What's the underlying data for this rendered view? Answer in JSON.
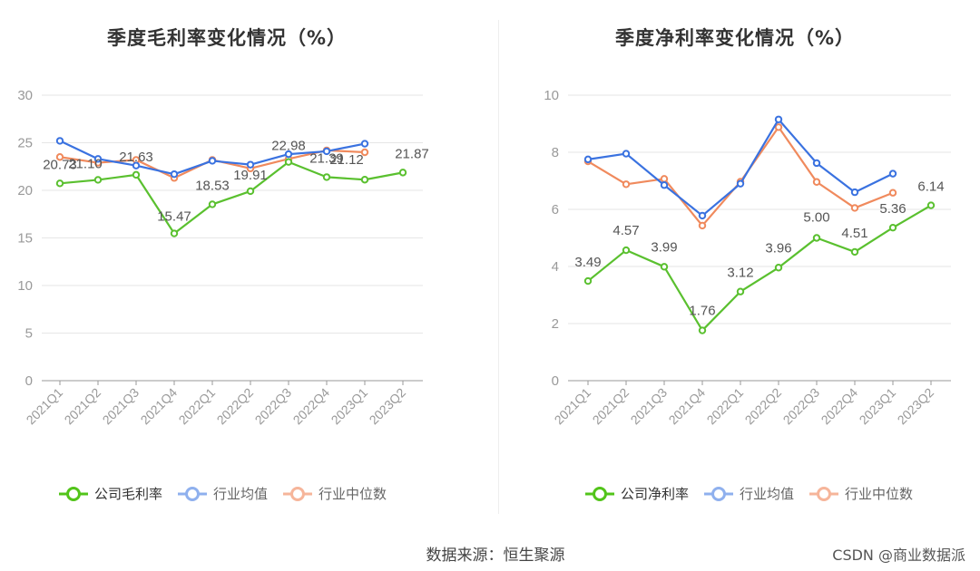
{
  "charts": [
    {
      "title": "季度毛利率变化情况（%）",
      "legend": [
        {
          "label": "公司毛利率",
          "color": "#52c41a"
        },
        {
          "label": "行业均值",
          "color": "#6e93e8"
        },
        {
          "label": "行业中位数",
          "color": "#f4a07e"
        }
      ]
    },
    {
      "title": "季度净利率变化情况（%）",
      "legend": [
        {
          "label": "公司净利率",
          "color": "#52c41a"
        },
        {
          "label": "行业均值",
          "color": "#6e93e8"
        },
        {
          "label": "行业中位数",
          "color": "#f4a07e"
        }
      ]
    }
  ],
  "chart_data": [
    {
      "type": "line",
      "title": "季度毛利率变化情况（%）",
      "categories": [
        "2021Q1",
        "2021Q2",
        "2021Q3",
        "2021Q4",
        "2022Q1",
        "2022Q2",
        "2022Q3",
        "2022Q4",
        "2023Q1",
        "2023Q2"
      ],
      "ylim": [
        0,
        30
      ],
      "yticks": [
        0,
        5,
        10,
        15,
        20,
        25,
        30
      ],
      "grid": true,
      "legend_position": "bottom",
      "series": [
        {
          "name": "公司毛利率",
          "color": "#52c41a",
          "line_color": "#5ac02f",
          "labels": true,
          "values": [
            20.73,
            21.1,
            21.63,
            15.47,
            18.53,
            19.91,
            22.98,
            21.39,
            21.12,
            21.87
          ]
        },
        {
          "name": "行业均值",
          "color": "#3a72e0",
          "line_color": "#3a72e0",
          "labels": false,
          "values": [
            25.2,
            23.3,
            22.6,
            21.7,
            23.1,
            22.7,
            23.8,
            24.1,
            24.9,
            null
          ]
        },
        {
          "name": "行业中位数",
          "color": "#f08a5d",
          "line_color": "#f08a5d",
          "labels": false,
          "values": [
            23.5,
            22.9,
            23.2,
            21.3,
            23.2,
            22.3,
            23.3,
            24.2,
            24.0,
            null
          ]
        }
      ]
    },
    {
      "type": "line",
      "title": "季度净利率变化情况（%）",
      "categories": [
        "2021Q1",
        "2021Q2",
        "2021Q3",
        "2021Q4",
        "2022Q1",
        "2022Q2",
        "2022Q3",
        "2022Q4",
        "2023Q1",
        "2023Q2"
      ],
      "ylim": [
        0,
        10
      ],
      "yticks": [
        0,
        2,
        4,
        6,
        8,
        10
      ],
      "grid": true,
      "legend_position": "bottom",
      "series": [
        {
          "name": "公司净利率",
          "color": "#52c41a",
          "line_color": "#5ac02f",
          "labels": true,
          "values": [
            3.49,
            4.57,
            3.99,
            1.76,
            3.12,
            3.96,
            5.0,
            4.51,
            5.36,
            6.14
          ]
        },
        {
          "name": "行业均值",
          "color": "#3a72e0",
          "line_color": "#3a72e0",
          "labels": false,
          "values": [
            7.75,
            7.95,
            6.85,
            5.78,
            6.9,
            9.15,
            7.62,
            6.6,
            7.25,
            null
          ]
        },
        {
          "name": "行业中位数",
          "color": "#f08a5d",
          "line_color": "#f08a5d",
          "labels": false,
          "values": [
            7.68,
            6.88,
            7.07,
            5.43,
            6.97,
            8.88,
            6.96,
            6.05,
            6.58,
            null
          ]
        }
      ]
    }
  ],
  "source_text": "数据来源：恒生聚源",
  "watermark": "CSDN @商业数据派"
}
